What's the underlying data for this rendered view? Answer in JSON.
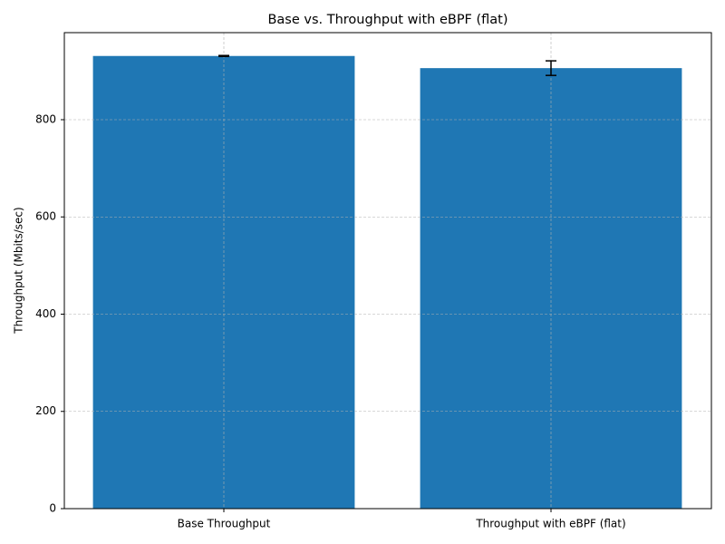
{
  "chart_data": {
    "type": "bar",
    "title": "Base vs. Throughput with eBPF (flat)",
    "y_label": "Throughput (Mbits/sec)",
    "categories": [
      "Base Throughput",
      "Throughput with eBPF (flat)"
    ],
    "values": [
      931,
      906
    ],
    "errors": [
      1,
      15
    ],
    "color": "#1f77b4",
    "ylim": [
      0,
      979
    ],
    "yticks": [
      0,
      200,
      400,
      600,
      800
    ],
    "grid": true
  }
}
